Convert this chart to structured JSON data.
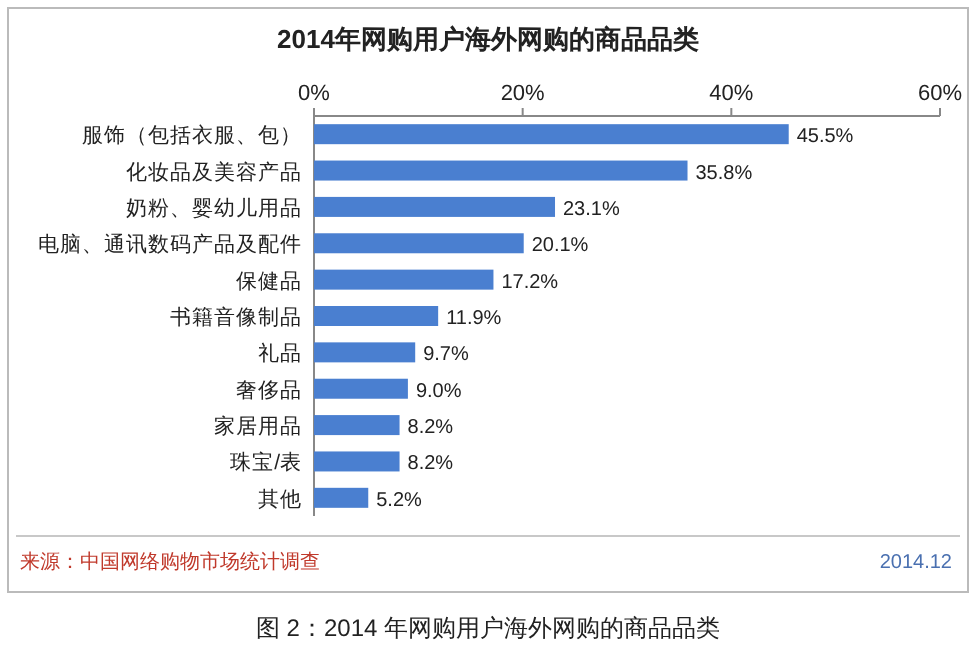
{
  "chart_data": {
    "type": "bar",
    "orientation": "horizontal",
    "title": "2014年网购用户海外网购的商品品类",
    "categories": [
      "服饰（包括衣服、包）",
      "化妆品及美容产品",
      "奶粉、婴幼儿用品",
      "电脑、通讯数码产品及配件",
      "保健品",
      "书籍音像制品",
      "礼品",
      "奢侈品",
      "家居用品",
      "珠宝/表",
      "其他"
    ],
    "values": [
      45.5,
      35.8,
      23.1,
      20.1,
      17.2,
      11.9,
      9.7,
      9.0,
      8.2,
      8.2,
      5.2
    ],
    "value_labels": [
      "45.5%",
      "35.8%",
      "23.1%",
      "20.1%",
      "17.2%",
      "11.9%",
      "9.7%",
      "9.0%",
      "8.2%",
      "8.2%",
      "5.2%"
    ],
    "color": "#4a7fd0",
    "xlim": [
      0,
      60
    ],
    "xticks": [
      {
        "value": 0,
        "label": "0%"
      },
      {
        "value": 20,
        "label": "20%"
      },
      {
        "value": 40,
        "label": "40%"
      },
      {
        "value": 60,
        "label": "60%"
      }
    ],
    "annotations": [
      "来源：中国网络购物市场统计调查",
      "2014.12",
      "图 2：2014 年网购用户海外网购的商品品类"
    ]
  }
}
